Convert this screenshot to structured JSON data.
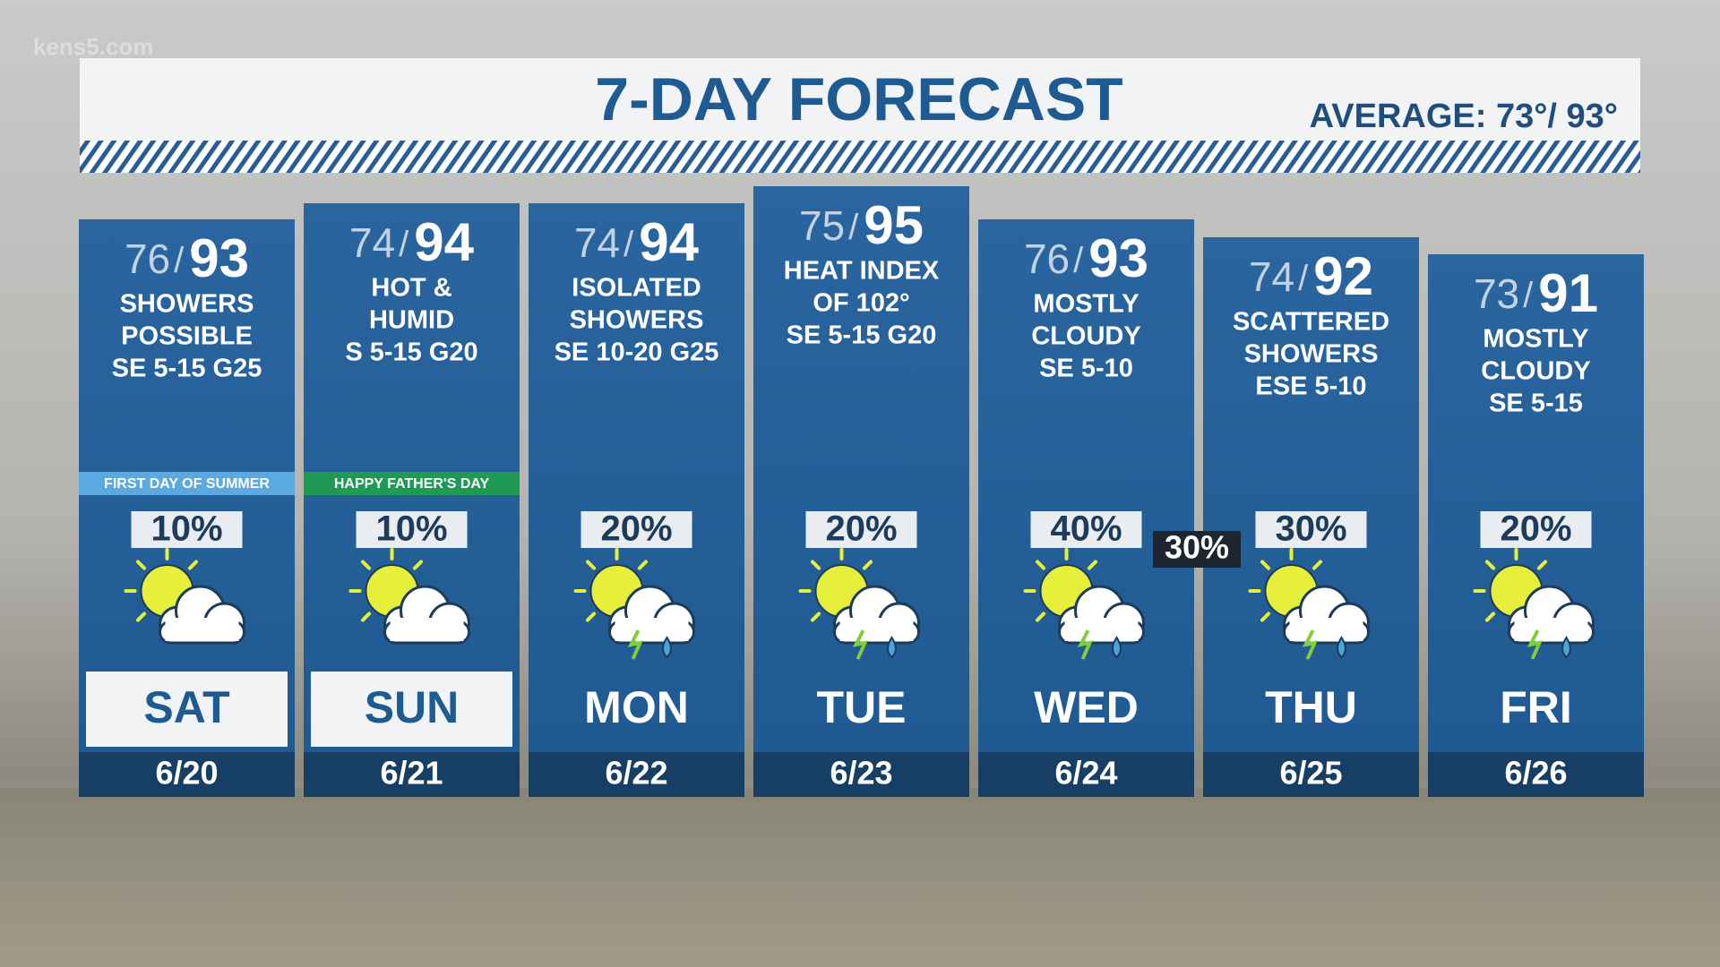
{
  "watermark": "kens5.com",
  "header": {
    "title": "7-DAY FORECAST",
    "average": "AVERAGE: 73°/ 93°"
  },
  "temp_separator": "/",
  "days": [
    {
      "low": "76",
      "high": "93",
      "conditions": [
        "SHOWERS",
        "POSSIBLE",
        "SE 5-15 G25"
      ],
      "note": "FIRST DAY OF SUMMER",
      "precip": "10%",
      "day": "SAT",
      "date": "6/20"
    },
    {
      "low": "74",
      "high": "94",
      "conditions": [
        "HOT &",
        "HUMID",
        "S 5-15 G20"
      ],
      "note": "HAPPY FATHER'S DAY",
      "precip": "10%",
      "day": "SUN",
      "date": "6/21"
    },
    {
      "low": "74",
      "high": "94",
      "conditions": [
        "ISOLATED",
        "SHOWERS",
        "SE 10-20 G25"
      ],
      "precip": "20%",
      "day": "MON",
      "date": "6/22"
    },
    {
      "low": "75",
      "high": "95",
      "conditions": [
        "HEAT INDEX",
        "OF 102°",
        "SE 5-15 G20"
      ],
      "precip": "20%",
      "day": "TUE",
      "date": "6/23"
    },
    {
      "low": "76",
      "high": "93",
      "conditions": [
        "MOSTLY",
        "CLOUDY",
        "SE 5-10"
      ],
      "precip": "40%",
      "day": "WED",
      "date": "6/24"
    },
    {
      "low": "74",
      "high": "92",
      "conditions": [
        "SCATTERED",
        "SHOWERS",
        "ESE 5-10"
      ],
      "precip": "30%",
      "day": "THU",
      "date": "6/25"
    },
    {
      "low": "73",
      "high": "91",
      "conditions": [
        "MOSTLY",
        "CLOUDY",
        "SE 5-15"
      ],
      "precip": "20%",
      "day": "FRI",
      "date": "6/26"
    }
  ],
  "extra_precip": "30%"
}
